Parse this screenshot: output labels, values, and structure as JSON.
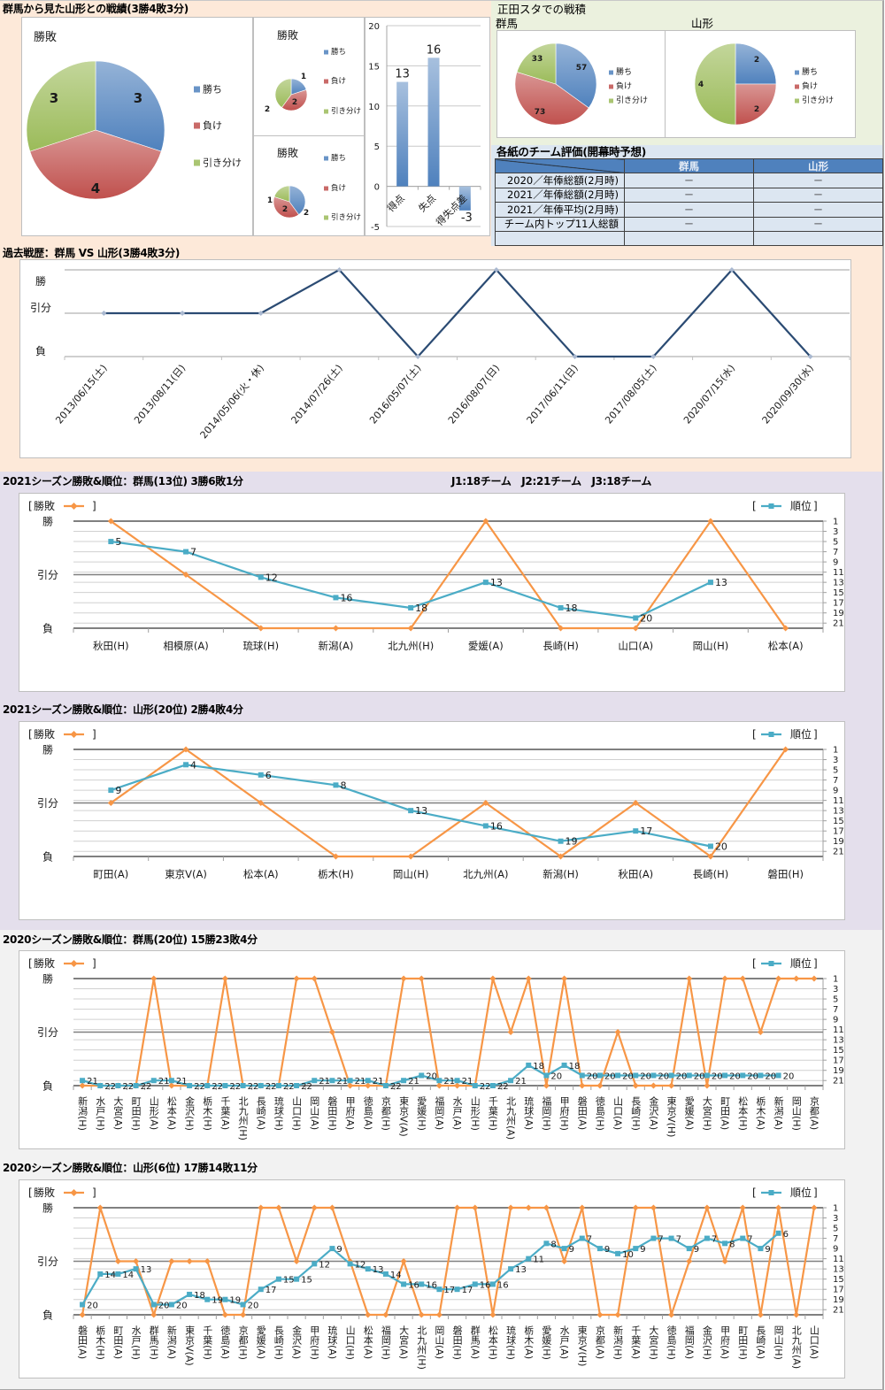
{
  "colors": {
    "win": "#4f81bd",
    "loss": "#c0504d",
    "draw": "#9bbb59",
    "bar": "#4f81bd",
    "result_line": "#f79646",
    "rank_line": "#4bacc6",
    "history_line": "#2b4b73",
    "history_marker": "#a9b8d0",
    "table_header": "#4f81bd",
    "table_cell": "#dce6f1"
  },
  "sections": {
    "head_to_head": {
      "title": "群馬から見た山形との戦績(3勝4敗3分)"
    },
    "stadium": {
      "title": "正田スタでの戦積"
    },
    "evaluation": {
      "title": "各紙のチーム評価(開幕時予想)",
      "columns": [
        "群馬",
        "山形"
      ],
      "rows": [
        {
          "label": "2020／年俸総額(2月時)",
          "values": [
            "－",
            "－"
          ]
        },
        {
          "label": "2021／年俸総額(2月時)",
          "values": [
            "－",
            "－"
          ]
        },
        {
          "label": "2021／年俸平均(2月時)",
          "values": [
            "－",
            "－"
          ]
        },
        {
          "label": "チーム内トップ11人総額",
          "values": [
            "－",
            "－"
          ]
        },
        {
          "label": "",
          "values": [
            "",
            ""
          ]
        }
      ]
    },
    "season2021": {
      "league_note": "J1:18チーム　J2:21チーム　J3:18チーム"
    }
  },
  "chart_data": [
    {
      "id": "overall_result_pie",
      "type": "pie",
      "title": "勝敗",
      "labels": [
        "勝ち",
        "負け",
        "引き分け"
      ],
      "values": [
        3,
        4,
        3
      ],
      "legend": "right"
    },
    {
      "id": "small_result_pie_1",
      "type": "pie",
      "title": "勝敗",
      "labels": [
        "勝ち",
        "負け",
        "引き分け"
      ],
      "values": [
        1,
        2,
        2
      ],
      "legend": "right"
    },
    {
      "id": "small_result_pie_2",
      "type": "pie",
      "title": "勝敗",
      "labels": [
        "勝ち",
        "負け",
        "引き分け"
      ],
      "values": [
        2,
        2,
        1
      ],
      "legend": "right"
    },
    {
      "id": "goals_bar",
      "type": "bar",
      "title": "",
      "categories": [
        "得点",
        "失点",
        "得失点差"
      ],
      "values": [
        13,
        16,
        -3
      ],
      "xlabel": "",
      "ylabel": "",
      "ylim": [
        -5,
        20
      ],
      "yticks": [
        -5,
        0,
        5,
        10,
        15,
        20
      ],
      "grid": true
    },
    {
      "id": "stadium_gunma_pie",
      "type": "pie",
      "title": "群馬",
      "labels": [
        "勝ち",
        "負け",
        "引き分け"
      ],
      "values": [
        57,
        73,
        33
      ],
      "legend": "right"
    },
    {
      "id": "stadium_yamagata_pie",
      "type": "pie",
      "title": "山形",
      "labels": [
        "勝ち",
        "負け",
        "引き分け"
      ],
      "values": [
        2,
        2,
        4
      ],
      "legend": "right"
    },
    {
      "id": "history_line",
      "type": "line",
      "title": "過去戦歴：群馬 VS 山形(3勝4敗3分)",
      "categories": [
        "2013/06/15(土)",
        "2013/08/11(日)",
        "2014/05/06(火・休)",
        "2014/07/26(土)",
        "2016/05/07(土)",
        "2016/08/07(日)",
        "2017/06/11(日)",
        "2017/08/05(土)",
        "2020/07/15(水)",
        "2020/09/30(水)"
      ],
      "y_levels": [
        "勝",
        "引分",
        "負"
      ],
      "values": [
        "引分",
        "引分",
        "引分",
        "勝",
        "負",
        "勝",
        "負",
        "負",
        "勝",
        "負"
      ],
      "grid": true
    },
    {
      "id": "season2021_gunma",
      "type": "line",
      "title": "2021シーズン勝敗&順位：群馬(13位) 3勝6敗1分",
      "categories": [
        "秋田(H)",
        "相模原(A)",
        "琉球(H)",
        "新潟(A)",
        "北九州(H)",
        "愛媛(A)",
        "長崎(H)",
        "山口(A)",
        "岡山(H)",
        "松本(A)"
      ],
      "series": [
        {
          "name": "勝敗",
          "axis": "left",
          "values": [
            "勝",
            "引分",
            "負",
            "負",
            "負",
            "勝",
            "負",
            "負",
            "勝",
            "負"
          ]
        },
        {
          "name": "順位",
          "axis": "right",
          "values": [
            5,
            7,
            12,
            16,
            18,
            13,
            18,
            20,
            13,
            null
          ]
        }
      ],
      "left_axis": {
        "labels": [
          "勝",
          "引分",
          "負"
        ]
      },
      "right_axis": {
        "range": [
          1,
          22
        ],
        "ticks": [
          1,
          3,
          5,
          7,
          9,
          11,
          13,
          15,
          17,
          19,
          21
        ],
        "reversed": true
      },
      "legend_brackets": [
        "[",
        "]"
      ],
      "legend": "top"
    },
    {
      "id": "season2021_yamagata",
      "type": "line",
      "title": "2021シーズン勝敗&順位：山形(20位) 2勝4敗4分",
      "categories": [
        "町田(A)",
        "東京V(A)",
        "松本(A)",
        "栃木(H)",
        "岡山(H)",
        "北九州(A)",
        "新潟(H)",
        "秋田(A)",
        "長崎(H)",
        "磐田(H)"
      ],
      "series": [
        {
          "name": "勝敗",
          "axis": "left",
          "values": [
            "引分",
            "勝",
            "引分",
            "負",
            "負",
            "引分",
            "負",
            "引分",
            "負",
            "勝"
          ]
        },
        {
          "name": "順位",
          "axis": "right",
          "values": [
            9,
            4,
            6,
            8,
            13,
            16,
            19,
            17,
            20,
            null
          ]
        }
      ],
      "left_axis": {
        "labels": [
          "勝",
          "引分",
          "負"
        ]
      },
      "right_axis": {
        "range": [
          1,
          22
        ],
        "ticks": [
          1,
          3,
          5,
          7,
          9,
          11,
          13,
          15,
          17,
          19,
          21
        ],
        "reversed": true
      },
      "legend_brackets": [
        "[",
        "]"
      ],
      "legend": "top"
    },
    {
      "id": "season2020_gunma",
      "type": "line",
      "title": "2020シーズン勝敗&順位：群馬(20位) 15勝23敗4分",
      "categories": [
        "新潟(H)",
        "水戸(H)",
        "大宮(A)",
        "町田(H)",
        "山形(A)",
        "松本(A)",
        "金沢(H)",
        "栃木(H)",
        "千葉(A)",
        "北九州(H)",
        "長崎(A)",
        "琉球(H)",
        "山口(H)",
        "岡山(A)",
        "磐田(H)",
        "甲府(A)",
        "徳島(A)",
        "京都(H)",
        "東京V(A)",
        "愛媛(H)",
        "福岡(A)",
        "水戸(A)",
        "山形(H)",
        "千葉(H)",
        "北九州(A)",
        "琉球(A)",
        "福岡(H)",
        "甲府(H)",
        "磐田(A)",
        "徳島(H)",
        "山口(A)",
        "長崎(H)",
        "金沢(A)",
        "東京V(H)",
        "愛媛(A)",
        "大宮(H)",
        "町田(A)",
        "松本(H)",
        "栃木(A)",
        "新潟(A)",
        "岡山(H)",
        "京都(A)"
      ],
      "series": [
        {
          "name": "勝敗",
          "axis": "left",
          "values": [
            "負",
            "負",
            "負",
            "負",
            "勝",
            "負",
            "負",
            "負",
            "勝",
            "負",
            "負",
            "負",
            "勝",
            "勝",
            "引分",
            "負",
            "負",
            "負",
            "勝",
            "勝",
            "負",
            "負",
            "負",
            "勝",
            "引分",
            "勝",
            "負",
            "勝",
            "負",
            "負",
            "引分",
            "負",
            "負",
            "負",
            "勝",
            "負",
            "勝",
            "勝",
            "引分",
            "勝",
            "勝",
            "勝"
          ]
        },
        {
          "name": "順位",
          "axis": "right",
          "values": [
            21,
            22,
            22,
            22,
            21,
            21,
            22,
            22,
            22,
            22,
            22,
            22,
            22,
            21,
            21,
            21,
            21,
            22,
            21,
            20,
            21,
            21,
            22,
            22,
            21,
            18,
            20,
            18,
            20,
            20,
            20,
            20,
            20,
            20,
            20,
            20,
            20,
            20,
            20,
            20,
            null,
            null
          ]
        }
      ],
      "left_axis": {
        "labels": [
          "勝",
          "引分",
          "負"
        ]
      },
      "right_axis": {
        "range": [
          1,
          22
        ],
        "ticks": [
          1,
          3,
          5,
          7,
          9,
          11,
          13,
          15,
          17,
          19,
          21
        ],
        "reversed": true
      },
      "legend_brackets": [
        "[",
        "]"
      ],
      "legend": "top"
    },
    {
      "id": "season2020_yamagata",
      "type": "line",
      "title": "2020シーズン勝敗&順位：山形(6位) 17勝14敗11分",
      "categories": [
        "磐田(A)",
        "栃木(H)",
        "町田(A)",
        "水戸(H)",
        "群馬(H)",
        "新潟(A)",
        "東京V(A)",
        "千葉(H)",
        "徳島(A)",
        "京都(H)",
        "愛媛(A)",
        "長崎(H)",
        "金沢(A)",
        "甲府(H)",
        "琉球(A)",
        "山口(H)",
        "松本(A)",
        "福岡(H)",
        "大宮(A)",
        "北九州(H)",
        "岡山(A)",
        "磐田(H)",
        "群馬(A)",
        "松本(H)",
        "琉球(H)",
        "栃木(A)",
        "愛媛(H)",
        "水戸(A)",
        "東京V(H)",
        "京都(A)",
        "新潟(H)",
        "千葉(A)",
        "大宮(H)",
        "徳島(H)",
        "福岡(A)",
        "金沢(H)",
        "甲府(A)",
        "町田(H)",
        "長崎(A)",
        "岡山(H)",
        "北九州(A)",
        "山口(A)"
      ],
      "series": [
        {
          "name": "勝敗",
          "axis": "left",
          "values": [
            "負",
            "勝",
            "引分",
            "引分",
            "負",
            "引分",
            "引分",
            "引分",
            "負",
            "負",
            "勝",
            "勝",
            "引分",
            "勝",
            "勝",
            "引分",
            "負",
            "負",
            "引分",
            "負",
            "負",
            "勝",
            "勝",
            "負",
            "勝",
            "勝",
            "勝",
            "引分",
            "勝",
            "負",
            "負",
            "勝",
            "勝",
            "負",
            "引分",
            "勝",
            "引分",
            "勝",
            "負",
            "勝",
            "負",
            "勝"
          ]
        },
        {
          "name": "順位",
          "axis": "right",
          "values": [
            20,
            14,
            14,
            13,
            20,
            20,
            18,
            19,
            19,
            20,
            17,
            15,
            15,
            12,
            9,
            12,
            13,
            14,
            16,
            16,
            17,
            17,
            16,
            16,
            13,
            11,
            8,
            9,
            7,
            9,
            10,
            9,
            7,
            7,
            9,
            7,
            8,
            7,
            9,
            6,
            null,
            null
          ]
        }
      ],
      "left_axis": {
        "labels": [
          "勝",
          "引分",
          "負"
        ]
      },
      "right_axis": {
        "range": [
          1,
          22
        ],
        "ticks": [
          1,
          3,
          5,
          7,
          9,
          11,
          13,
          15,
          17,
          19,
          21
        ],
        "reversed": true
      },
      "legend_brackets": [
        "[",
        "]"
      ],
      "legend": "top"
    }
  ]
}
